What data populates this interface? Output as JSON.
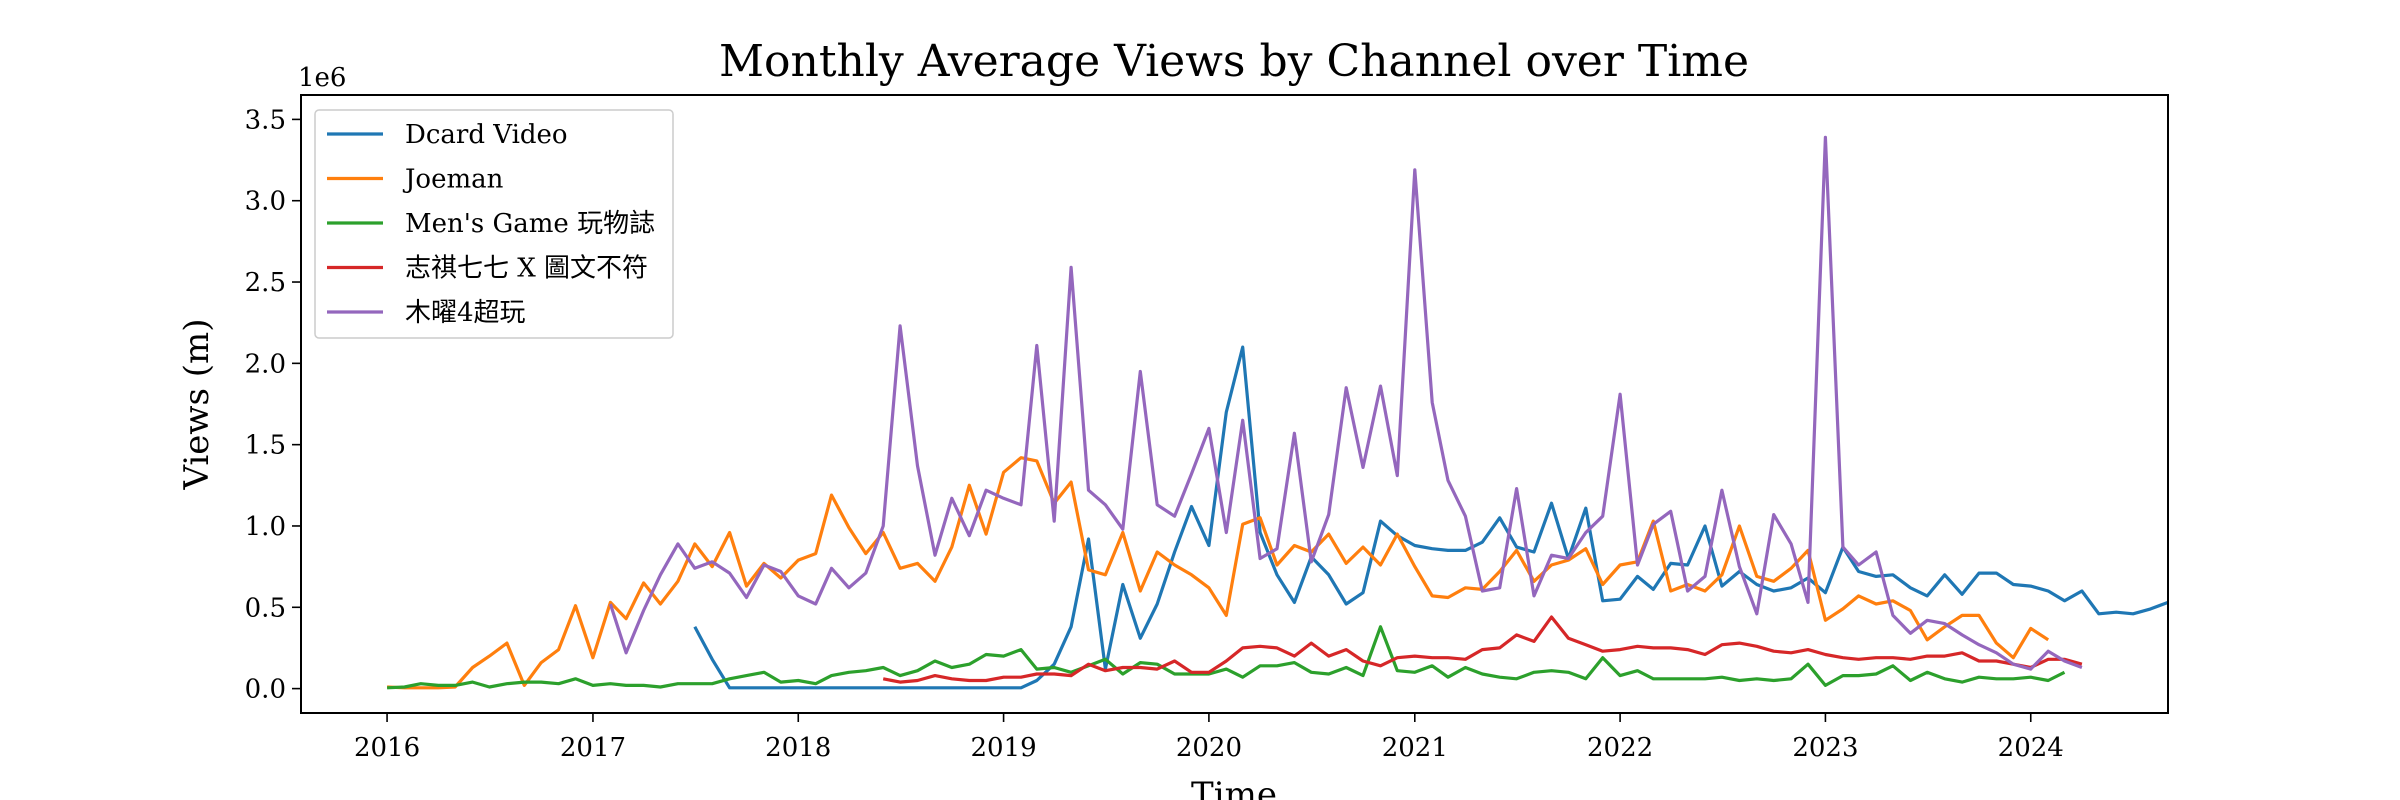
{
  "chart_data": {
    "type": "line",
    "title": "Monthly Average Views by Channel over Time",
    "xlabel": "Time",
    "ylabel": "Views (m)",
    "y_offset_label": "1e6",
    "xlim": [
      "2015-08-01",
      "2024-09-01"
    ],
    "ylim": [
      -150000,
      3650000
    ],
    "x_ticks": [
      {
        "date": "2016-01-01",
        "label": "2016"
      },
      {
        "date": "2017-01-01",
        "label": "2017"
      },
      {
        "date": "2018-01-01",
        "label": "2018"
      },
      {
        "date": "2019-01-01",
        "label": "2019"
      },
      {
        "date": "2020-01-01",
        "label": "2020"
      },
      {
        "date": "2021-01-01",
        "label": "2021"
      },
      {
        "date": "2022-01-01",
        "label": "2022"
      },
      {
        "date": "2023-01-01",
        "label": "2023"
      },
      {
        "date": "2024-01-01",
        "label": "2024"
      }
    ],
    "y_ticks": [
      {
        "value": 0,
        "label": "0.0"
      },
      {
        "value": 500000,
        "label": "0.5"
      },
      {
        "value": 1000000,
        "label": "1.0"
      },
      {
        "value": 1500000,
        "label": "1.5"
      },
      {
        "value": 2000000,
        "label": "2.0"
      },
      {
        "value": 2500000,
        "label": "2.5"
      },
      {
        "value": 3000000,
        "label": "3.0"
      },
      {
        "value": 3500000,
        "label": "3.5"
      }
    ],
    "grid": false,
    "legend_position": "top-left",
    "series": [
      {
        "name": "Dcard Video",
        "color": "#1f77b4",
        "start": "2017-07",
        "values": [
          380000,
          180000,
          5000,
          5000,
          5000,
          5000,
          5000,
          5000,
          5000,
          5000,
          5000,
          5000,
          5000,
          5000,
          5000,
          5000,
          5000,
          5000,
          5000,
          5000,
          50000,
          150000,
          380000,
          920000,
          120000,
          640000,
          310000,
          520000,
          840000,
          1120000,
          880000,
          1700000,
          2100000,
          960000,
          700000,
          530000,
          810000,
          700000,
          520000,
          590000,
          1030000,
          940000,
          880000,
          860000,
          850000,
          850000,
          900000,
          1050000,
          870000,
          840000,
          1140000,
          800000,
          1110000,
          540000,
          550000,
          690000,
          610000,
          770000,
          760000,
          1000000,
          630000,
          720000,
          640000,
          600000,
          620000,
          680000,
          590000,
          870000,
          720000,
          690000,
          700000,
          620000,
          570000,
          700000,
          580000,
          710000,
          710000,
          640000,
          630000,
          600000,
          540000,
          600000,
          460000,
          470000,
          460000,
          490000,
          530000
        ]
      },
      {
        "name": "Joeman",
        "color": "#ff7f0e",
        "start": "2016-01",
        "values": [
          10000,
          5000,
          5000,
          5000,
          10000,
          130000,
          200000,
          280000,
          20000,
          160000,
          240000,
          510000,
          190000,
          530000,
          430000,
          650000,
          520000,
          660000,
          890000,
          750000,
          960000,
          630000,
          770000,
          680000,
          790000,
          830000,
          1190000,
          990000,
          830000,
          960000,
          740000,
          770000,
          660000,
          870000,
          1250000,
          950000,
          1330000,
          1420000,
          1400000,
          1140000,
          1270000,
          730000,
          700000,
          960000,
          600000,
          840000,
          760000,
          700000,
          620000,
          450000,
          1010000,
          1050000,
          760000,
          880000,
          840000,
          950000,
          770000,
          870000,
          760000,
          950000,
          750000,
          570000,
          560000,
          620000,
          610000,
          720000,
          850000,
          660000,
          760000,
          790000,
          860000,
          640000,
          760000,
          780000,
          1030000,
          600000,
          640000,
          600000,
          700000,
          1000000,
          690000,
          660000,
          740000,
          850000,
          420000,
          490000,
          570000,
          520000,
          540000,
          480000,
          300000,
          380000,
          450000,
          450000,
          280000,
          190000,
          370000,
          300000
        ]
      },
      {
        "name": "Men's Game 玩物誌",
        "color": "#2ca02c",
        "start": "2016-01",
        "values": [
          5000,
          10000,
          30000,
          20000,
          20000,
          40000,
          10000,
          30000,
          40000,
          40000,
          30000,
          60000,
          20000,
          30000,
          20000,
          20000,
          10000,
          30000,
          30000,
          30000,
          60000,
          80000,
          100000,
          40000,
          50000,
          30000,
          80000,
          100000,
          110000,
          130000,
          80000,
          110000,
          170000,
          130000,
          150000,
          210000,
          200000,
          240000,
          120000,
          130000,
          100000,
          140000,
          180000,
          90000,
          160000,
          150000,
          90000,
          90000,
          90000,
          120000,
          70000,
          140000,
          140000,
          160000,
          100000,
          90000,
          130000,
          80000,
          380000,
          110000,
          100000,
          140000,
          70000,
          130000,
          90000,
          70000,
          60000,
          100000,
          110000,
          100000,
          60000,
          190000,
          80000,
          110000,
          60000,
          60000,
          60000,
          60000,
          70000,
          50000,
          60000,
          50000,
          60000,
          150000,
          20000,
          80000,
          80000,
          90000,
          140000,
          50000,
          100000,
          60000,
          40000,
          70000,
          60000,
          60000,
          70000,
          50000,
          100000
        ]
      },
      {
        "name": "志祺七七 X 圖文不符",
        "color": "#d62728",
        "start": "2018-06",
        "values": [
          60000,
          40000,
          50000,
          80000,
          60000,
          50000,
          50000,
          70000,
          70000,
          90000,
          90000,
          80000,
          150000,
          110000,
          130000,
          130000,
          120000,
          170000,
          100000,
          100000,
          170000,
          250000,
          260000,
          250000,
          200000,
          280000,
          200000,
          240000,
          170000,
          140000,
          190000,
          200000,
          190000,
          190000,
          180000,
          240000,
          250000,
          330000,
          290000,
          440000,
          310000,
          270000,
          230000,
          240000,
          260000,
          250000,
          250000,
          240000,
          210000,
          270000,
          280000,
          260000,
          230000,
          220000,
          240000,
          210000,
          190000,
          180000,
          190000,
          190000,
          180000,
          200000,
          200000,
          220000,
          170000,
          170000,
          150000,
          130000,
          180000,
          180000,
          150000
        ]
      },
      {
        "name": "木曜4超玩",
        "color": "#9467bd",
        "start": "2017-02",
        "values": [
          520000,
          220000,
          480000,
          700000,
          890000,
          740000,
          780000,
          710000,
          560000,
          760000,
          720000,
          570000,
          520000,
          740000,
          620000,
          710000,
          1000000,
          2230000,
          1370000,
          820000,
          1170000,
          940000,
          1220000,
          1170000,
          1130000,
          2110000,
          1030000,
          2590000,
          1220000,
          1130000,
          980000,
          1950000,
          1130000,
          1060000,
          1320000,
          1600000,
          960000,
          1650000,
          800000,
          860000,
          1570000,
          780000,
          1070000,
          1850000,
          1360000,
          1860000,
          1310000,
          3190000,
          1760000,
          1280000,
          1060000,
          600000,
          620000,
          1230000,
          570000,
          820000,
          800000,
          960000,
          1060000,
          1810000,
          760000,
          1010000,
          1090000,
          600000,
          690000,
          1220000,
          750000,
          460000,
          1070000,
          890000,
          530000,
          3390000,
          870000,
          760000,
          840000,
          450000,
          340000,
          420000,
          400000,
          330000,
          270000,
          220000,
          150000,
          120000,
          230000,
          170000,
          130000
        ]
      }
    ]
  }
}
